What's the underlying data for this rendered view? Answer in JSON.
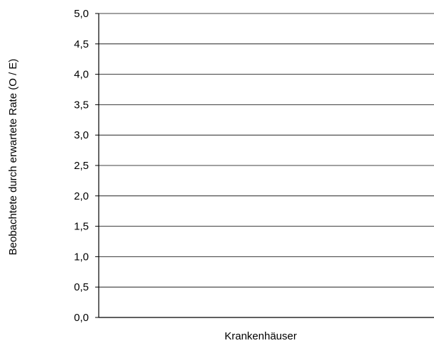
{
  "chart_data": {
    "type": "bar",
    "title": "",
    "xlabel": "Krankenhäuser",
    "ylabel": "Beobachtete durch erwartete Rate (O / E)",
    "categories": [],
    "series": [],
    "ylim": [
      0,
      5
    ],
    "y_ticks": [
      "0,0",
      "0,5",
      "1,0",
      "1,5",
      "2,0",
      "2,5",
      "3,0",
      "3,5",
      "4,0",
      "4,5",
      "5,0"
    ],
    "grid": true,
    "legend": "none",
    "colors": {
      "gridline": "#000000",
      "axis": "#000000",
      "text": "#000000"
    }
  }
}
